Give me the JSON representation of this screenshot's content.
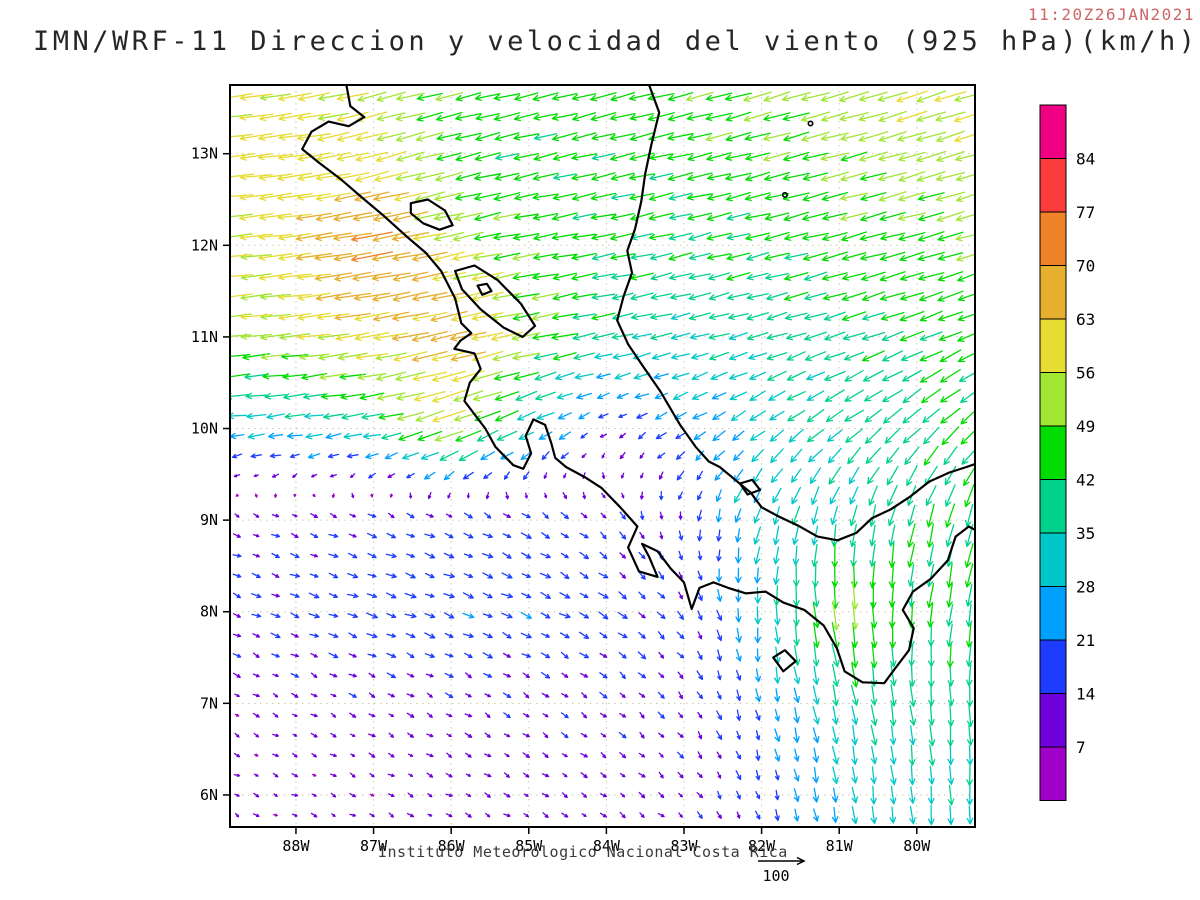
{
  "header": {
    "title": "IMN/WRF-11 Direccion y velocidad del viento (925 hPa)(km/h)",
    "timestamp": "11:20Z26JAN2021"
  },
  "footer": {
    "caption": "Instituto Meteorologico Nacional Costa Rica",
    "reference_label": "100"
  },
  "chart_data": {
    "type": "vector_field_map",
    "model": "IMN/WRF-11",
    "field": "Direccion y velocidad del viento",
    "level": "925 hPa",
    "units": "km/h",
    "valid_time": "11:20Z26JAN2021",
    "lon_range": [
      -88.85,
      -79.25
    ],
    "lat_range": [
      5.65,
      13.75
    ],
    "x_tick_labels": [
      "88W",
      "87W",
      "86W",
      "85W",
      "84W",
      "83W",
      "82W",
      "81W",
      "80W"
    ],
    "x_tick_lons": [
      -88,
      -87,
      -86,
      -85,
      -84,
      -83,
      -82,
      -81,
      -80
    ],
    "y_tick_labels": [
      "13N",
      "12N",
      "11N",
      "10N",
      "9N",
      "8N",
      "7N",
      "6N"
    ],
    "y_tick_lats": [
      13,
      12,
      11,
      10,
      9,
      8,
      7,
      6
    ],
    "grid_on": true,
    "reference_vector": 100,
    "colorbar": {
      "tick_labels": [
        "84",
        "77",
        "70",
        "63",
        "56",
        "49",
        "42",
        "35",
        "28",
        "21",
        "14",
        "7"
      ],
      "thresholds": [
        7,
        14,
        21,
        28,
        35,
        42,
        49,
        56,
        63,
        70,
        77,
        84
      ],
      "segment_colors_top_to_bottom": [
        "#F00082",
        "#FA3C3C",
        "#F08228",
        "#E6AF2D",
        "#E6DC32",
        "#A0E632",
        "#00DC00",
        "#00D28C",
        "#00C8C8",
        "#00A0FF",
        "#1E3CFF",
        "#6E00DC",
        "#A000C8"
      ]
    },
    "wind_grid": {
      "lons": [
        -89,
        -88,
        -87,
        -86,
        -85,
        -84,
        -83,
        -82,
        -81,
        -80,
        -79
      ],
      "lats": [
        14,
        13,
        12,
        11,
        10,
        9,
        8,
        7,
        6
      ],
      "u_kmh": [
        [
          -55,
          -55,
          -50,
          -46,
          -45,
          -45,
          -47,
          -50,
          -52,
          -55,
          -57
        ],
        [
          -58,
          -60,
          -56,
          -45,
          -42,
          -42,
          -44,
          -45,
          -48,
          -50,
          -52
        ],
        [
          -55,
          -60,
          -74,
          -55,
          -45,
          -42,
          -40,
          -42,
          -45,
          -45,
          -48
        ],
        [
          -52,
          -55,
          -60,
          -66,
          -50,
          -38,
          -34,
          -35,
          -38,
          -40,
          -42
        ],
        [
          -30,
          -30,
          -35,
          -55,
          -30,
          -10,
          -20,
          -25,
          -30,
          -30,
          -32
        ],
        [
          10,
          12,
          14,
          15,
          15,
          10,
          0,
          -10,
          -8,
          -10,
          -12
        ],
        [
          14,
          16,
          18,
          18,
          18,
          16,
          10,
          0,
          8,
          -5,
          -8
        ],
        [
          8,
          9,
          10,
          10,
          10,
          10,
          8,
          5,
          8,
          5,
          0
        ],
        [
          7,
          8,
          8,
          9,
          9,
          9,
          8,
          5,
          5,
          3,
          0
        ]
      ],
      "v_kmh": [
        [
          -8,
          -10,
          -12,
          -10,
          -10,
          -12,
          -12,
          -15,
          -15,
          -18,
          -18
        ],
        [
          -6,
          -8,
          -15,
          -12,
          -10,
          -10,
          -10,
          -12,
          -12,
          -15,
          -15
        ],
        [
          -5,
          -8,
          -13,
          -12,
          -8,
          -8,
          -10,
          -10,
          -12,
          -12,
          -15
        ],
        [
          -5,
          -6,
          -10,
          -15,
          -10,
          -8,
          -8,
          -10,
          -12,
          -15,
          -18
        ],
        [
          -3,
          -4,
          -6,
          -20,
          -15,
          -6,
          -12,
          -18,
          -22,
          -28,
          -30
        ],
        [
          -4,
          -5,
          -6,
          -6,
          -8,
          -10,
          -15,
          -30,
          -35,
          -40,
          -42
        ],
        [
          -6,
          -6,
          -6,
          -7,
          -8,
          -10,
          -12,
          -30,
          -52,
          -42,
          -40
        ],
        [
          -5,
          -5,
          -6,
          -6,
          -7,
          -8,
          -10,
          -20,
          -35,
          -38,
          -40
        ],
        [
          -4,
          -4,
          -5,
          -5,
          -6,
          -7,
          -8,
          -15,
          -28,
          -32,
          -35
        ]
      ]
    },
    "basemap": {
      "coastlines": [
        {
          "name": "pacific-coast",
          "closed": false,
          "pts": [
            [
              -87.35,
              13.75
            ],
            [
              -87.3,
              13.52
            ],
            [
              -87.12,
              13.4
            ],
            [
              -87.32,
              13.3
            ],
            [
              -87.58,
              13.35
            ],
            [
              -87.8,
              13.24
            ],
            [
              -87.92,
              13.05
            ],
            [
              -87.7,
              12.9
            ],
            [
              -87.42,
              12.72
            ],
            [
              -87.12,
              12.5
            ],
            [
              -86.88,
              12.33
            ],
            [
              -86.58,
              12.1
            ],
            [
              -86.33,
              11.92
            ],
            [
              -86.13,
              11.72
            ],
            [
              -85.95,
              11.42
            ],
            [
              -85.87,
              11.15
            ],
            [
              -85.74,
              11.04
            ],
            [
              -85.88,
              10.96
            ],
            [
              -85.96,
              10.87
            ],
            [
              -85.7,
              10.82
            ],
            [
              -85.62,
              10.65
            ],
            [
              -85.76,
              10.5
            ],
            [
              -85.83,
              10.3
            ],
            [
              -85.56,
              10.0
            ],
            [
              -85.43,
              9.8
            ],
            [
              -85.2,
              9.6
            ],
            [
              -85.07,
              9.56
            ],
            [
              -84.97,
              9.73
            ],
            [
              -85.04,
              9.92
            ],
            [
              -84.94,
              10.1
            ],
            [
              -84.79,
              10.04
            ],
            [
              -84.71,
              9.84
            ],
            [
              -84.66,
              9.68
            ],
            [
              -84.52,
              9.58
            ],
            [
              -84.28,
              9.47
            ],
            [
              -84.06,
              9.35
            ],
            [
              -83.82,
              9.14
            ],
            [
              -83.6,
              8.93
            ],
            [
              -83.72,
              8.7
            ],
            [
              -83.58,
              8.44
            ],
            [
              -83.34,
              8.38
            ],
            [
              -83.45,
              8.6
            ],
            [
              -83.54,
              8.74
            ],
            [
              -83.34,
              8.66
            ],
            [
              -83.17,
              8.47
            ],
            [
              -83.0,
              8.32
            ],
            [
              -82.9,
              8.03
            ],
            [
              -82.8,
              8.26
            ],
            [
              -82.62,
              8.32
            ],
            [
              -82.43,
              8.26
            ],
            [
              -82.2,
              8.2
            ],
            [
              -81.95,
              8.22
            ],
            [
              -81.72,
              8.1
            ],
            [
              -81.45,
              8.02
            ],
            [
              -81.2,
              7.85
            ],
            [
              -81.03,
              7.6
            ],
            [
              -80.93,
              7.35
            ],
            [
              -80.7,
              7.23
            ],
            [
              -80.42,
              7.22
            ],
            [
              -80.28,
              7.38
            ],
            [
              -80.1,
              7.58
            ],
            [
              -80.04,
              7.82
            ],
            [
              -80.18,
              8.02
            ],
            [
              -80.05,
              8.22
            ],
            [
              -79.82,
              8.36
            ],
            [
              -79.6,
              8.56
            ],
            [
              -79.5,
              8.82
            ],
            [
              -79.33,
              8.93
            ],
            [
              -79.22,
              8.88
            ]
          ]
        },
        {
          "name": "caribbean-coast",
          "closed": false,
          "pts": [
            [
              -83.45,
              13.75
            ],
            [
              -83.32,
              13.45
            ],
            [
              -83.42,
              13.1
            ],
            [
              -83.5,
              12.78
            ],
            [
              -83.55,
              12.48
            ],
            [
              -83.63,
              12.18
            ],
            [
              -83.73,
              11.94
            ],
            [
              -83.67,
              11.7
            ],
            [
              -83.78,
              11.44
            ],
            [
              -83.86,
              11.18
            ],
            [
              -83.72,
              10.92
            ],
            [
              -83.56,
              10.72
            ],
            [
              -83.3,
              10.4
            ],
            [
              -83.05,
              10.04
            ],
            [
              -82.85,
              9.8
            ],
            [
              -82.68,
              9.64
            ],
            [
              -82.54,
              9.58
            ],
            [
              -82.34,
              9.44
            ],
            [
              -82.14,
              9.3
            ],
            [
              -82.0,
              9.14
            ],
            [
              -81.78,
              9.04
            ],
            [
              -81.53,
              8.94
            ],
            [
              -81.28,
              8.82
            ],
            [
              -81.02,
              8.78
            ],
            [
              -80.78,
              8.86
            ],
            [
              -80.58,
              9.02
            ],
            [
              -80.33,
              9.12
            ],
            [
              -80.08,
              9.26
            ],
            [
              -79.84,
              9.42
            ],
            [
              -79.58,
              9.52
            ],
            [
              -79.36,
              9.58
            ],
            [
              -79.22,
              9.62
            ]
          ]
        },
        {
          "name": "lake-managua",
          "closed": true,
          "pts": [
            [
              -86.52,
              12.46
            ],
            [
              -86.3,
              12.5
            ],
            [
              -86.08,
              12.38
            ],
            [
              -85.98,
              12.22
            ],
            [
              -86.15,
              12.17
            ],
            [
              -86.36,
              12.24
            ],
            [
              -86.52,
              12.35
            ]
          ]
        },
        {
          "name": "lake-nicaragua",
          "closed": true,
          "pts": [
            [
              -85.95,
              11.72
            ],
            [
              -85.7,
              11.78
            ],
            [
              -85.4,
              11.62
            ],
            [
              -85.1,
              11.36
            ],
            [
              -84.92,
              11.12
            ],
            [
              -85.08,
              11.0
            ],
            [
              -85.32,
              11.1
            ],
            [
              -85.62,
              11.3
            ],
            [
              -85.86,
              11.52
            ]
          ]
        },
        {
          "name": "ometepe-island",
          "closed": true,
          "pts": [
            [
              -85.66,
              11.56
            ],
            [
              -85.54,
              11.58
            ],
            [
              -85.48,
              11.5
            ],
            [
              -85.6,
              11.46
            ]
          ]
        },
        {
          "name": "coiba-island",
          "closed": true,
          "pts": [
            [
              -81.85,
              7.5
            ],
            [
              -81.7,
              7.58
            ],
            [
              -81.56,
              7.46
            ],
            [
              -81.72,
              7.35
            ]
          ]
        },
        {
          "name": "bocas-islets",
          "closed": true,
          "pts": [
            [
              -82.28,
              9.4
            ],
            [
              -82.12,
              9.44
            ],
            [
              -82.02,
              9.33
            ],
            [
              -82.18,
              9.28
            ]
          ]
        }
      ],
      "island_points": [
        [
          -81.37,
          13.33
        ],
        [
          -81.7,
          12.55
        ]
      ]
    }
  }
}
